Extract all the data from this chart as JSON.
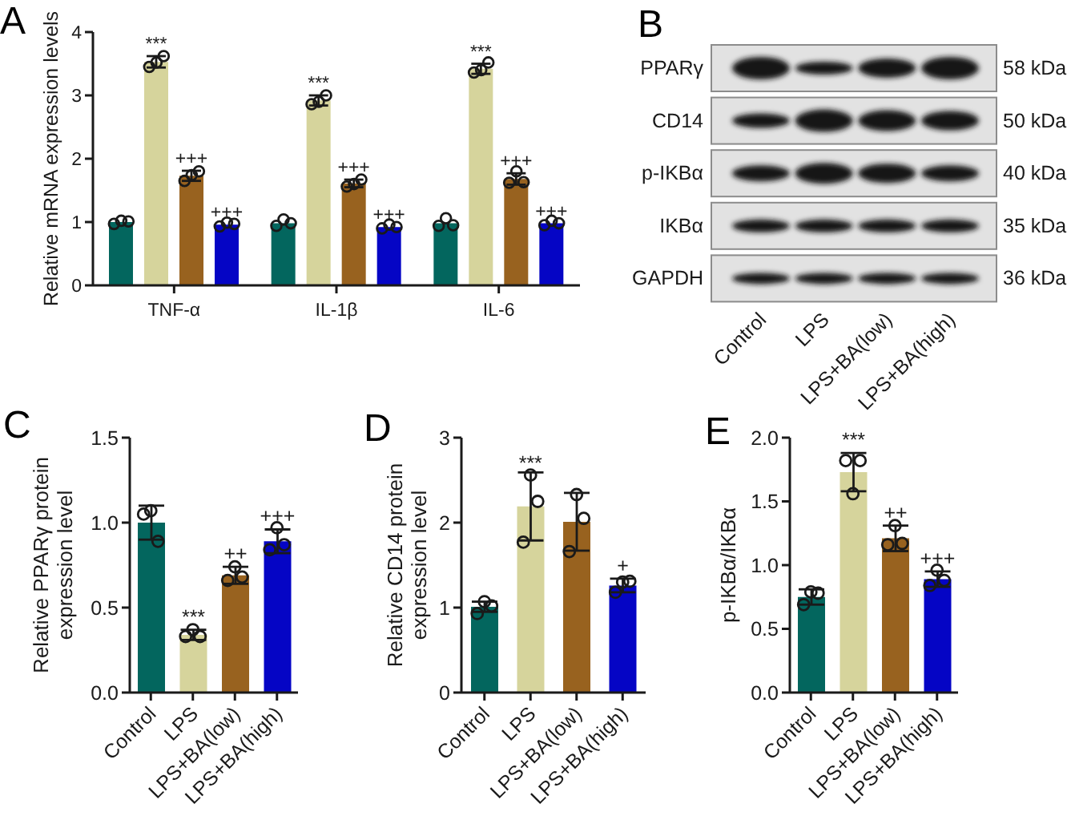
{
  "chart_data": [
    {
      "type": "bar",
      "title": "A",
      "ylabel": "Relative mRNA expression levels",
      "categories": [
        "TNF-α",
        "IL-1β",
        "IL-6"
      ],
      "ylim": [
        0,
        4
      ],
      "yticks": [
        0,
        1,
        2,
        3,
        4
      ],
      "marker": "circle",
      "series": [
        {
          "color": "#03665e",
          "values": [
            1.0,
            0.98,
            0.98
          ]
        },
        {
          "color": "#d6d49c",
          "values": [
            3.53,
            2.92,
            3.42
          ],
          "errors": [
            0.09,
            0.08,
            0.08
          ],
          "value_labels": [
            "***",
            "***",
            "***"
          ]
        },
        {
          "color": "#98621f",
          "values": [
            1.73,
            1.61,
            1.68
          ],
          "errors": [
            0.08,
            0.06,
            0.09
          ],
          "value_labels": [
            "+++",
            "+++",
            "+++"
          ]
        },
        {
          "color": "#0505c5",
          "values": [
            0.96,
            0.92,
            0.98
          ],
          "value_labels": [
            "+++",
            "+++",
            "+++"
          ]
        },
        {
          "type": "scatter",
          "color": "#1a1a1a",
          "x": [
            "TNF-α",
            "TNF-α",
            "TNF-α",
            "IL-1β",
            "IL-1β",
            "IL-1β",
            "IL-6",
            "IL-6",
            "IL-6"
          ],
          "values": [
            0.97,
            1.02,
            1.01,
            0.94,
            1.04,
            0.98,
            0.94,
            1.06,
            0.95
          ]
        },
        {
          "type": "scatter",
          "color": "#1a1a1a",
          "x": [
            "TNF-α",
            "TNF-α",
            "TNF-α",
            "IL-1β",
            "IL-1β",
            "IL-1β",
            "IL-6",
            "IL-6",
            "IL-6"
          ],
          "values": [
            3.45,
            3.52,
            3.62,
            2.86,
            2.9,
            3.0,
            3.36,
            3.4,
            3.52
          ]
        },
        {
          "type": "scatter",
          "color": "#1a1a1a",
          "x": [
            "TNF-α",
            "TNF-α",
            "TNF-α",
            "IL-1β",
            "IL-1β",
            "IL-1β",
            "IL-6",
            "IL-6",
            "IL-6"
          ],
          "values": [
            1.65,
            1.74,
            1.8,
            1.56,
            1.6,
            1.67,
            1.62,
            1.8,
            1.63
          ]
        },
        {
          "type": "scatter",
          "color": "#1a1a1a",
          "x": [
            "TNF-α",
            "TNF-α",
            "TNF-α",
            "IL-1β",
            "IL-1β",
            "IL-1β",
            "IL-6",
            "IL-6",
            "IL-6"
          ],
          "values": [
            0.93,
            0.99,
            0.97,
            0.9,
            0.96,
            0.92,
            0.95,
            1.02,
            0.98
          ]
        }
      ]
    },
    {
      "type": "other",
      "title": "B",
      "categories": [
        "Control",
        "LPS",
        "LPS+BA(low)",
        "LPS+BA(high)"
      ],
      "y_categories": [
        "PPARγ",
        "CD14",
        "p-IKBα",
        "IKBα",
        "GAPDH"
      ],
      "y2_categories": [
        "58 kDa",
        "50 kDa",
        "40 kDa",
        "35 kDa",
        "36 kDa"
      ]
    },
    {
      "type": "bar",
      "title": "C",
      "ylabel": "Relative PPARγ protein\nexpression level",
      "categories": [
        "Control",
        "LPS",
        "LPS+BA(low)",
        "LPS+BA(high)"
      ],
      "ylim": [
        0,
        1.5
      ],
      "yticks": [
        {
          "value": 0,
          "label": "0.0"
        },
        {
          "value": 0.5,
          "label": "0.5"
        },
        {
          "value": 1,
          "label": "1.0"
        },
        {
          "value": 1.5,
          "label": "1.5"
        }
      ],
      "marker": "circle",
      "series": [
        {
          "colors": [
            "#03665e",
            "#d6d49c",
            "#98621f",
            "#0505c5"
          ],
          "values": [
            1.0,
            0.34,
            0.69,
            0.89
          ],
          "errors": [
            0.1,
            0.03,
            0.05,
            0.07
          ],
          "value_labels": [
            null,
            "***",
            "++",
            "+++"
          ]
        },
        {
          "type": "scatter",
          "color": "#1a1a1a",
          "x": [
            "Control",
            "Control",
            "Control",
            "LPS",
            "LPS",
            "LPS",
            "LPS+BA(low)",
            "LPS+BA(low)",
            "LPS+BA(low)",
            "LPS+BA(high)",
            "LPS+BA(high)",
            "LPS+BA(high)"
          ],
          "values": [
            1.05,
            1.07,
            0.89,
            0.33,
            0.37,
            0.33,
            0.66,
            0.74,
            0.68,
            0.84,
            0.97,
            0.87
          ]
        }
      ]
    },
    {
      "type": "bar",
      "title": "D",
      "ylabel": "Relative CD14 protein\nexpression level",
      "categories": [
        "Control",
        "LPS",
        "LPS+BA(low)",
        "LPS+BA(high)"
      ],
      "ylim": [
        0,
        3
      ],
      "yticks": [
        0,
        1,
        2,
        3
      ],
      "marker": "circle",
      "annotations": [
        {
          "text": "***",
          "x": "LPS",
          "y": 2.7
        }
      ],
      "series": [
        {
          "colors": [
            "#03665e",
            "#d6d49c",
            "#98621f",
            "#0505c5"
          ],
          "values": [
            1.01,
            2.19,
            2.01,
            1.26
          ],
          "errors": [
            0.06,
            0.4,
            0.34,
            0.08
          ],
          "value_labels": [
            null,
            null,
            null,
            "+"
          ]
        },
        {
          "type": "scatter",
          "color": "#1a1a1a",
          "x": [
            "Control",
            "Control",
            "Control",
            "LPS",
            "LPS",
            "LPS",
            "LPS+BA(low)",
            "LPS+BA(low)",
            "LPS+BA(low)",
            "LPS+BA(high)",
            "LPS+BA(high)",
            "LPS+BA(high)"
          ],
          "values": [
            0.93,
            1.07,
            1.02,
            1.77,
            2.56,
            2.25,
            1.66,
            2.33,
            2.05,
            1.18,
            1.3,
            1.31
          ]
        }
      ]
    },
    {
      "type": "bar",
      "title": "E",
      "ylabel": "p-IKBα/IKBα",
      "categories": [
        "Control",
        "LPS",
        "LPS+BA(low)",
        "LPS+BA(high)"
      ],
      "ylim": [
        0,
        2
      ],
      "yticks": [
        {
          "value": 0,
          "label": "0.0"
        },
        {
          "value": 0.5,
          "label": "0.5"
        },
        {
          "value": 1,
          "label": "1.0"
        },
        {
          "value": 1.5,
          "label": "1.5"
        },
        {
          "value": 2,
          "label": "2.0"
        }
      ],
      "marker": "circle",
      "series": [
        {
          "colors": [
            "#03665e",
            "#d6d49c",
            "#98621f",
            "#0505c5"
          ],
          "values": [
            0.75,
            1.73,
            1.21,
            0.89
          ],
          "errors": [
            0.06,
            0.15,
            0.1,
            0.06
          ],
          "value_labels": [
            null,
            "***",
            "++",
            "+++"
          ]
        },
        {
          "type": "scatter",
          "color": "#1a1a1a",
          "x": [
            "Control",
            "Control",
            "Control",
            "LPS",
            "LPS",
            "LPS",
            "LPS+BA(low)",
            "LPS+BA(low)",
            "LPS+BA(low)",
            "LPS+BA(high)",
            "LPS+BA(high)",
            "LPS+BA(high)"
          ],
          "values": [
            0.69,
            0.79,
            0.78,
            1.82,
            1.56,
            1.82,
            1.16,
            1.31,
            1.17,
            0.84,
            0.96,
            0.88
          ]
        }
      ]
    }
  ]
}
